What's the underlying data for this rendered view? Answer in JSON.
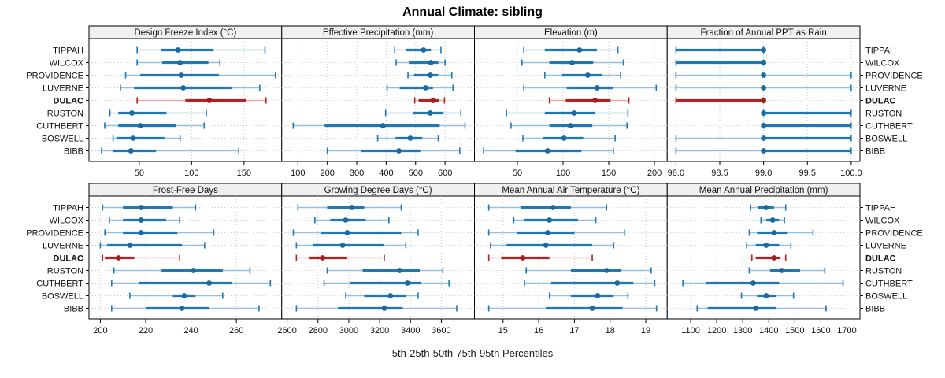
{
  "colors": {
    "normal": "#1f77b4",
    "normal_light": "#93c0de",
    "normal_dot": "#1a699f",
    "highlight": "#b22222",
    "highlight_light": "#e4aca7",
    "highlight_dot": "#a31f1f",
    "header_bg": "#f0f0f0",
    "panel_border": "#000000",
    "grid": "#c9c9c9",
    "tick_color": "#000000"
  },
  "chart_data": {
    "type": "interval",
    "title": "Annual Climate: sibling",
    "xlabel": "5th-25th-50th-75th-95th Percentiles",
    "percentiles": [
      5,
      25,
      50,
      75,
      95
    ],
    "rows": [
      "TIPPAH",
      "WILCOX",
      "PROVIDENCE",
      "LUVERNE",
      "DULAC",
      "RUSTON",
      "CUTHBERT",
      "BOSWELL",
      "BIBB"
    ],
    "highlight_row": "DULAC",
    "legend_position": "none",
    "grid": "dotted",
    "panels": [
      {
        "slug": "design-freeze-index",
        "title": "Design Freeze Index (°C)",
        "xlim": [
          2,
          186
        ],
        "ticks": [
          50,
          100,
          150
        ],
        "tick_labels": [
          "50",
          "100",
          "150"
        ],
        "values": {
          "TIPPAH": [
            48,
            71,
            87,
            121,
            170
          ],
          "WILCOX": [
            48,
            72,
            89,
            116,
            127
          ],
          "PROVIDENCE": [
            37,
            51,
            90,
            126,
            180
          ],
          "LUVERNE": [
            32,
            45,
            92,
            139,
            165
          ],
          "DULAC": [
            48,
            94,
            117,
            152,
            171
          ],
          "RUSTON": [
            22,
            30,
            43,
            76,
            114
          ],
          "CUTHBERT": [
            17,
            30,
            51,
            85,
            112
          ],
          "BOSWELL": [
            25,
            29,
            44,
            74,
            89
          ],
          "BIBB": [
            14,
            25,
            42,
            66,
            145
          ]
        }
      },
      {
        "slug": "effective-precipitation",
        "title": "Effective Precipitation (mm)",
        "xlim": [
          45,
          700
        ],
        "ticks": [
          100,
          200,
          300,
          400,
          500,
          600
        ],
        "tick_labels": [
          "100",
          "200",
          "300",
          "400",
          "500",
          "600"
        ],
        "values": {
          "TIPPAH": [
            429,
            468,
            527,
            552,
            586
          ],
          "WILCOX": [
            434,
            477,
            552,
            577,
            600
          ],
          "PROVIDENCE": [
            474,
            495,
            550,
            577,
            623
          ],
          "LUVERNE": [
            403,
            446,
            534,
            559,
            627
          ],
          "DULAC": [
            497,
            510,
            560,
            580,
            598
          ],
          "RUSTON": [
            398,
            491,
            550,
            595,
            654
          ],
          "CUTHBERT": [
            84,
            191,
            389,
            582,
            668
          ],
          "BOSWELL": [
            371,
            432,
            482,
            523,
            577
          ],
          "BIBB": [
            200,
            314,
            443,
            516,
            650
          ]
        }
      },
      {
        "slug": "elevation",
        "title": "Elevation (m)",
        "xlim": [
          3,
          214
        ],
        "ticks": [
          50,
          100,
          150,
          200
        ],
        "tick_labels": [
          "50",
          "100",
          "150",
          "200"
        ],
        "values": {
          "TIPPAH": [
            57,
            80,
            118,
            137,
            160
          ],
          "WILCOX": [
            55,
            85,
            110,
            133,
            166
          ],
          "PROVIDENCE": [
            80,
            99,
            127,
            143,
            163
          ],
          "LUVERNE": [
            57,
            104,
            137,
            155,
            202
          ],
          "DULAC": [
            85,
            103,
            135,
            152,
            172
          ],
          "RUSTON": [
            38,
            80,
            112,
            135,
            171
          ],
          "CUTHBERT": [
            43,
            85,
            108,
            132,
            170
          ],
          "BOSWELL": [
            56,
            78,
            101,
            122,
            157
          ],
          "BIBB": [
            13,
            48,
            83,
            120,
            155
          ]
        }
      },
      {
        "slug": "fraction-ppt-rain",
        "title": "Fraction of Annual PPT as Rain",
        "xlim": [
          97.9,
          100.1
        ],
        "ticks": [
          98.0,
          98.5,
          99.0,
          99.5,
          100.0
        ],
        "tick_labels": [
          "98.0",
          "98.5",
          "99.0",
          "99.5",
          "100.0"
        ],
        "values": {
          "TIPPAH": [
            98,
            98,
            99,
            99,
            99
          ],
          "WILCOX": [
            98,
            98,
            99,
            99,
            99
          ],
          "PROVIDENCE": [
            98,
            99,
            99,
            99,
            100
          ],
          "LUVERNE": [
            98,
            99,
            99,
            99,
            100
          ],
          "DULAC": [
            98,
            98,
            99,
            99,
            99
          ],
          "RUSTON": [
            99,
            99,
            99,
            100,
            100
          ],
          "CUTHBERT": [
            99,
            99,
            99,
            100,
            100
          ],
          "BOSWELL": [
            98,
            99,
            99,
            100,
            100
          ],
          "BIBB": [
            98,
            99,
            99,
            100,
            100
          ]
        }
      },
      {
        "slug": "frost-free-days",
        "title": "Frost-Free Days",
        "xlim": [
          195,
          280
        ],
        "ticks": [
          200,
          220,
          240,
          260
        ],
        "tick_labels": [
          "200",
          "220",
          "240",
          "260"
        ],
        "values": {
          "TIPPAH": [
            201,
            210,
            218,
            232,
            242
          ],
          "WILCOX": [
            204,
            210,
            218,
            229,
            235
          ],
          "PROVIDENCE": [
            202,
            210,
            218,
            234,
            250
          ],
          "LUVERNE": [
            200,
            203,
            213,
            236,
            246
          ],
          "DULAC": [
            201,
            202,
            208,
            215,
            235
          ],
          "RUSTON": [
            206,
            227,
            241,
            254,
            266
          ],
          "CUTHBERT": [
            205,
            217,
            248,
            258,
            275
          ],
          "BOSWELL": [
            213,
            232,
            237,
            242,
            254
          ],
          "BIBB": [
            205,
            220,
            236,
            248,
            270
          ]
        }
      },
      {
        "slug": "growing-degree-days",
        "title": "Growing Degree Days (°C)",
        "xlim": [
          2565,
          3815
        ],
        "ticks": [
          2600,
          2800,
          3000,
          3200,
          3400,
          3600
        ],
        "tick_labels": [
          "2600",
          "2800",
          "3000",
          "3200",
          "3400",
          "3600"
        ],
        "values": {
          "TIPPAH": [
            2670,
            2860,
            3020,
            3100,
            3340
          ],
          "WILCOX": [
            2780,
            2880,
            2980,
            3110,
            3260
          ],
          "PROVIDENCE": [
            2640,
            2820,
            2990,
            3340,
            3450
          ],
          "LUVERNE": [
            2660,
            2770,
            2960,
            3230,
            3370
          ],
          "DULAC": [
            2660,
            2740,
            2830,
            2990,
            3230
          ],
          "RUSTON": [
            2860,
            3090,
            3330,
            3460,
            3610
          ],
          "CUTHBERT": [
            2840,
            3010,
            3380,
            3470,
            3650
          ],
          "BOSWELL": [
            2980,
            3100,
            3270,
            3370,
            3450
          ],
          "BIBB": [
            2660,
            2930,
            3230,
            3350,
            3700
          ]
        }
      },
      {
        "slug": "mean-annual-air-temperature",
        "title": "Mean Annual Air Temperature (°C)",
        "xlim": [
          14.2,
          19.6
        ],
        "ticks": [
          15,
          16,
          17,
          18,
          19
        ],
        "tick_labels": [
          "15",
          "16",
          "17",
          "18",
          "19"
        ],
        "values": {
          "TIPPAH": [
            14.6,
            15.5,
            16.4,
            16.9,
            17.9
          ],
          "WILCOX": [
            15.3,
            15.6,
            16.3,
            17.1,
            17.6
          ],
          "PROVIDENCE": [
            14.6,
            15.4,
            16.25,
            17.0,
            18.4
          ],
          "LUVERNE": [
            14.65,
            15.1,
            16.2,
            17.5,
            18.1
          ],
          "DULAC": [
            14.6,
            14.95,
            15.55,
            16.3,
            17.5
          ],
          "RUSTON": [
            15.65,
            16.9,
            17.9,
            18.3,
            19.15
          ],
          "CUTHBERT": [
            15.6,
            16.35,
            18.2,
            18.65,
            19.25
          ],
          "BOSWELL": [
            16.3,
            16.9,
            17.65,
            18.1,
            18.5
          ],
          "BIBB": [
            14.6,
            16.2,
            17.5,
            18.35,
            19.3
          ]
        }
      },
      {
        "slug": "mean-annual-precipitation",
        "title": "Mean Annual Precipitation (mm)",
        "xlim": [
          1010,
          1750
        ],
        "ticks": [
          1100,
          1200,
          1300,
          1400,
          1500,
          1600,
          1700
        ],
        "tick_labels": [
          "1100",
          "1200",
          "1300",
          "1400",
          "1500",
          "1600",
          "1700"
        ],
        "values": {
          "TIPPAH": [
            1330,
            1360,
            1390,
            1420,
            1465
          ],
          "WILCOX": [
            1370,
            1390,
            1415,
            1440,
            1460
          ],
          "PROVIDENCE": [
            1325,
            1355,
            1420,
            1470,
            1570
          ],
          "LUVERNE": [
            1315,
            1350,
            1390,
            1440,
            1485
          ],
          "DULAC": [
            1335,
            1350,
            1420,
            1445,
            1465
          ],
          "RUSTON": [
            1325,
            1405,
            1450,
            1520,
            1615
          ],
          "CUTHBERT": [
            1070,
            1160,
            1340,
            1440,
            1685
          ],
          "BOSWELL": [
            1295,
            1355,
            1390,
            1430,
            1495
          ],
          "BIBB": [
            1125,
            1165,
            1350,
            1430,
            1620
          ]
        }
      }
    ]
  }
}
